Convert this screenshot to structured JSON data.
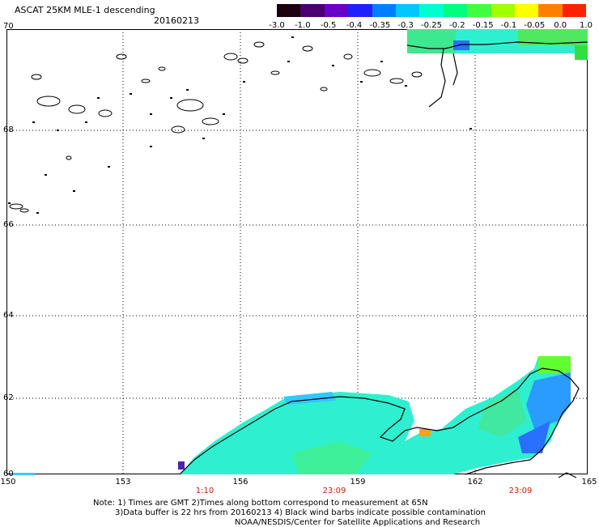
{
  "header": {
    "title": "ASCAT 25KM MLE-1 descending",
    "date": "20160213"
  },
  "colorbar": {
    "labels": [
      "-3.0",
      "-1.0",
      "-0.5",
      "-0.4",
      "-0.35",
      "-0.3",
      "-0.25",
      "-0.2",
      "-0.15",
      "-0.1",
      "-0.05",
      "0.0",
      "1.0"
    ],
    "colors": [
      "#1a0010",
      "#4a0070",
      "#6a00c8",
      "#2020ff",
      "#0080ff",
      "#00c8ff",
      "#00ffd0",
      "#00ff80",
      "#40ff40",
      "#a0ff00",
      "#ffff00",
      "#ff8000",
      "#ff2000"
    ]
  },
  "axes": {
    "lat_labels": [
      "70",
      "68",
      "66",
      "64",
      "62",
      "60"
    ],
    "lon_labels": [
      "150",
      "153",
      "156",
      "159",
      "162",
      "165"
    ],
    "time_labels": [
      "1:10",
      "23:09",
      "23:09"
    ]
  },
  "notes": {
    "line1": "Note: 1) Times are GMT 2)Times along bottom correspond to measurement at 65N",
    "line2": "3)Data buffer is 22 hrs from 20160213 4) Black wind barbs indicate possible contamination",
    "line3": "NOAA/NESDIS/Center for Satellite Applications and Research"
  }
}
